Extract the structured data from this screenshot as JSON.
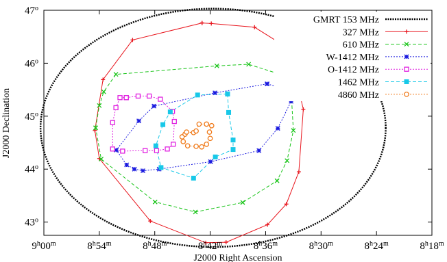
{
  "chart_data": {
    "type": "line",
    "xlabel": "J2000 Right Ascension",
    "ylabel": "J2000 Declination",
    "xlim": [
      135,
      124.5
    ],
    "ylim": [
      42.75,
      47
    ],
    "x_ticks": [
      {
        "value": 135,
        "h": "9",
        "m": "00"
      },
      {
        "value": 133.5,
        "h": "8",
        "m": "54"
      },
      {
        "value": 132,
        "h": "8",
        "m": "48"
      },
      {
        "value": 130.5,
        "h": "8",
        "m": "42"
      },
      {
        "value": 129,
        "h": "8",
        "m": "36"
      },
      {
        "value": 127.5,
        "h": "8",
        "m": "30"
      },
      {
        "value": 126,
        "h": "8",
        "m": "24"
      },
      {
        "value": 124.5,
        "h": "8",
        "m": "18"
      }
    ],
    "y_ticks": [
      {
        "value": 43,
        "deg": "43",
        "unit": "o"
      },
      {
        "value": 44,
        "deg": "44",
        "unit": "o"
      },
      {
        "value": 45,
        "deg": "45",
        "unit": "o"
      },
      {
        "value": 46,
        "deg": "46",
        "unit": "o"
      },
      {
        "value": 47,
        "deg": "47",
        "unit": "o"
      }
    ],
    "legend_position": "top-right",
    "series": [
      {
        "name": "GMRT 153 MHz",
        "color": "#000000",
        "marker": "none",
        "dash": "dot",
        "circle": {
          "center": [
            130.42,
            44.78
          ],
          "radius_x": 4.67,
          "radius_y": 2.25
        }
      },
      {
        "name": "327 MHz",
        "color": "#e8141c",
        "marker": "plus",
        "dash": "solid",
        "points": [
          [
            130.72,
            46.76
          ],
          [
            130.47,
            46.75
          ],
          [
            129.3,
            46.68
          ],
          [
            128.36,
            46.27
          ],
          [
            127.98,
            45.13
          ],
          [
            128.1,
            43.95
          ],
          [
            128.44,
            43.34
          ],
          [
            128.95,
            42.95
          ],
          [
            130.07,
            42.62
          ],
          [
            130.62,
            42.61
          ],
          [
            132.12,
            43.02
          ],
          [
            133.5,
            44.2
          ],
          [
            133.62,
            44.73
          ],
          [
            133.4,
            45.69
          ],
          [
            132.6,
            46.44
          ],
          [
            130.72,
            46.76
          ]
        ]
      },
      {
        "name": "610 MHz",
        "color": "#18c418",
        "marker": "x",
        "dash": "dash",
        "points": [
          [
            133.6,
            44.78
          ],
          [
            133.5,
            45.2
          ],
          [
            133.38,
            45.46
          ],
          [
            133.05,
            45.79
          ],
          [
            130.32,
            45.95
          ],
          [
            129.46,
            45.98
          ],
          [
            128.33,
            45.73
          ],
          [
            128.25,
            44.73
          ],
          [
            128.42,
            44.16
          ],
          [
            128.69,
            43.78
          ],
          [
            129.62,
            43.37
          ],
          [
            130.9,
            43.19
          ],
          [
            131.99,
            43.38
          ],
          [
            133.45,
            44.19
          ],
          [
            133.6,
            44.78
          ]
        ]
      },
      {
        "name": "W-1412 MHz",
        "color": "#1a1adf",
        "marker": "star",
        "dash": "dot",
        "points": [
          [
            128.96,
            45.61
          ],
          [
            128.51,
            45.52
          ],
          [
            128.31,
            45.28
          ],
          [
            128.67,
            44.77
          ],
          [
            129.18,
            44.35
          ],
          [
            130.49,
            44.14
          ],
          [
            131.88,
            44.0
          ],
          [
            132.32,
            43.97
          ],
          [
            132.55,
            44.0
          ],
          [
            132.76,
            44.08
          ],
          [
            133.04,
            44.36
          ],
          [
            132.43,
            44.91
          ],
          [
            132.02,
            45.19
          ],
          [
            130.37,
            45.44
          ],
          [
            128.96,
            45.61
          ]
        ]
      },
      {
        "name": "O-1412 MHz",
        "color": "#e020e0",
        "marker": "square",
        "dash": "dot",
        "points": [
          [
            132.77,
            45.35
          ],
          [
            132.45,
            45.38
          ],
          [
            132.15,
            45.38
          ],
          [
            131.85,
            45.32
          ],
          [
            131.52,
            45.09
          ],
          [
            131.47,
            44.9
          ],
          [
            131.5,
            44.47
          ],
          [
            131.66,
            44.38
          ],
          [
            131.95,
            44.35
          ],
          [
            132.26,
            44.35
          ],
          [
            132.87,
            44.34
          ],
          [
            133.14,
            44.38
          ],
          [
            133.14,
            44.88
          ],
          [
            133.05,
            45.16
          ],
          [
            132.94,
            45.35
          ],
          [
            132.77,
            45.35
          ]
        ]
      },
      {
        "name": "1462 MHz",
        "color": "#18c8e8",
        "marker": "fsquare",
        "dash": "dash",
        "points": [
          [
            130.03,
            45.42
          ],
          [
            130.0,
            45.07
          ],
          [
            129.88,
            44.55
          ],
          [
            129.88,
            44.37
          ],
          [
            130.36,
            44.23
          ],
          [
            130.95,
            43.83
          ],
          [
            131.83,
            44.03
          ],
          [
            131.97,
            44.44
          ],
          [
            131.78,
            44.84
          ],
          [
            131.58,
            45.08
          ],
          [
            130.84,
            45.4
          ],
          [
            130.03,
            45.42
          ]
        ]
      },
      {
        "name": "4860 MHz",
        "color": "#f07a1a",
        "marker": "circle",
        "dash": "dot",
        "points": [
          [
            130.6,
            44.85
          ],
          [
            130.46,
            44.82
          ],
          [
            130.52,
            44.7
          ],
          [
            130.5,
            44.58
          ],
          [
            130.6,
            44.47
          ],
          [
            130.73,
            44.42
          ],
          [
            130.88,
            44.43
          ],
          [
            131.11,
            44.44
          ],
          [
            131.23,
            44.52
          ],
          [
            131.26,
            44.61
          ],
          [
            131.18,
            44.66
          ],
          [
            131.14,
            44.7
          ],
          [
            130.95,
            44.69
          ],
          [
            130.88,
            44.72
          ],
          [
            130.8,
            44.85
          ],
          [
            130.6,
            44.85
          ]
        ]
      }
    ]
  }
}
